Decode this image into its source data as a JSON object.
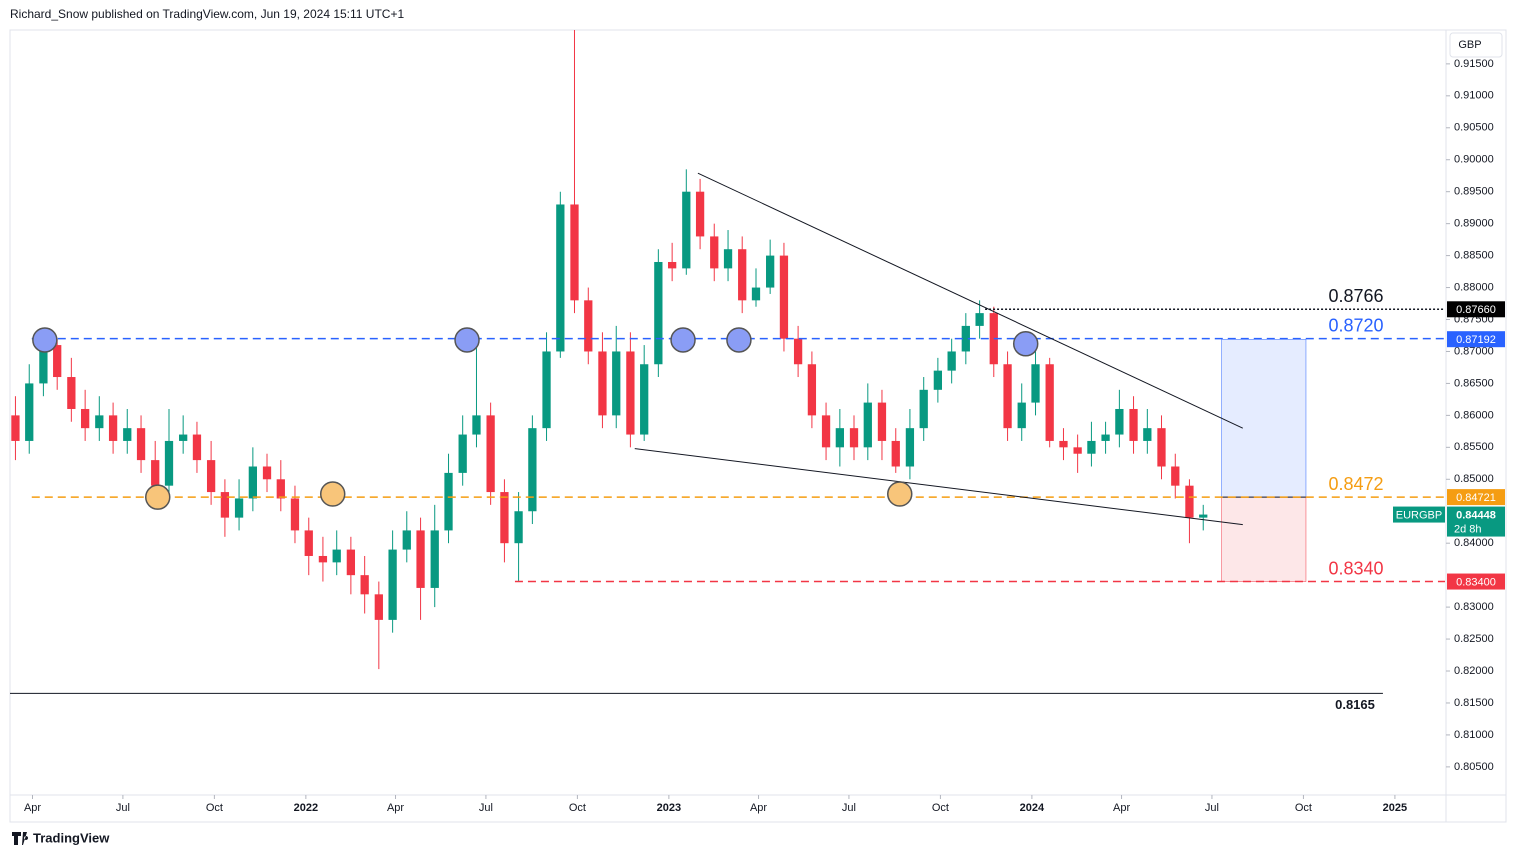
{
  "chart_data": {
    "type": "candlestick",
    "title": "Richard_Snow published on TradingView.com, Jun 19, 2024 15:11 UTC+1",
    "brand": "TradingView",
    "currency": "GBP",
    "symbol": "EURGBP",
    "countdown": "2d 8h",
    "up_color": "#089981",
    "down_color": "#f23645",
    "xlim": [
      2021.185,
      2025.138
    ],
    "ylim": [
      0.8006,
      0.9203
    ],
    "xticks": [
      {
        "value": 2021.247,
        "label": "Apr"
      },
      {
        "value": 2021.496,
        "label": "Jul"
      },
      {
        "value": 2021.748,
        "label": "Oct"
      },
      {
        "value": 2022.0,
        "label": "2022"
      },
      {
        "value": 2022.247,
        "label": "Apr"
      },
      {
        "value": 2022.496,
        "label": "Jul"
      },
      {
        "value": 2022.748,
        "label": "Oct"
      },
      {
        "value": 2023.0,
        "label": "2023"
      },
      {
        "value": 2023.247,
        "label": "Apr"
      },
      {
        "value": 2023.496,
        "label": "Jul"
      },
      {
        "value": 2023.748,
        "label": "Oct"
      },
      {
        "value": 2024.0,
        "label": "2024"
      },
      {
        "value": 2024.247,
        "label": "Apr"
      },
      {
        "value": 2024.496,
        "label": "Jul"
      },
      {
        "value": 2024.748,
        "label": "Oct"
      },
      {
        "value": 2025.0,
        "label": "2025"
      }
    ],
    "yticks": [
      {
        "value": 0.915,
        "label": "0.91500"
      },
      {
        "value": 0.91,
        "label": "0.91000"
      },
      {
        "value": 0.905,
        "label": "0.90500"
      },
      {
        "value": 0.9,
        "label": "0.90000"
      },
      {
        "value": 0.895,
        "label": "0.89500"
      },
      {
        "value": 0.89,
        "label": "0.89000"
      },
      {
        "value": 0.885,
        "label": "0.88500"
      },
      {
        "value": 0.88,
        "label": "0.88000"
      },
      {
        "value": 0.875,
        "label": "0.87500"
      },
      {
        "value": 0.87,
        "label": "0.87000"
      },
      {
        "value": 0.865,
        "label": "0.86500"
      },
      {
        "value": 0.86,
        "label": "0.86000"
      },
      {
        "value": 0.855,
        "label": "0.85500"
      },
      {
        "value": 0.85,
        "label": "0.85000"
      },
      {
        "value": 0.84,
        "label": "0.84000"
      },
      {
        "value": 0.83,
        "label": "0.83000"
      },
      {
        "value": 0.825,
        "label": "0.82500"
      },
      {
        "value": 0.82,
        "label": "0.82000"
      },
      {
        "value": 0.815,
        "label": "0.81500"
      },
      {
        "value": 0.81,
        "label": "0.81000"
      },
      {
        "value": 0.805,
        "label": "0.80500"
      }
    ],
    "x": [
      2021.2,
      2021.238,
      2021.277,
      2021.315,
      2021.354,
      2021.392,
      2021.431,
      2021.469,
      2021.508,
      2021.546,
      2021.585,
      2021.623,
      2021.662,
      2021.7,
      2021.739,
      2021.777,
      2021.816,
      2021.854,
      2021.893,
      2021.931,
      2021.97,
      2022.008,
      2022.047,
      2022.085,
      2022.124,
      2022.162,
      2022.201,
      2022.239,
      2022.278,
      2022.316,
      2022.355,
      2022.393,
      2022.432,
      2022.47,
      2022.509,
      2022.547,
      2022.586,
      2022.624,
      2022.663,
      2022.701,
      2022.74,
      2022.778,
      2022.817,
      2022.855,
      2022.894,
      2022.932,
      2022.971,
      2023.009,
      2023.048,
      2023.086,
      2023.125,
      2023.163,
      2023.202,
      2023.24,
      2023.279,
      2023.317,
      2023.356,
      2023.394,
      2023.433,
      2023.471,
      2023.51,
      2023.548,
      2023.587,
      2023.625,
      2023.664,
      2023.702,
      2023.741,
      2023.779,
      2023.818,
      2023.856,
      2023.895,
      2023.933,
      2023.972,
      2024.01,
      2024.049,
      2024.087,
      2024.126,
      2024.164,
      2024.203,
      2024.241,
      2024.28,
      2024.318,
      2024.357,
      2024.395,
      2024.434,
      2024.472
    ],
    "open": [
      0.86,
      0.856,
      0.865,
      0.871,
      0.866,
      0.861,
      0.858,
      0.86,
      0.856,
      0.858,
      0.853,
      0.849,
      0.856,
      0.857,
      0.853,
      0.848,
      0.844,
      0.847,
      0.852,
      0.85,
      0.847,
      0.842,
      0.838,
      0.837,
      0.839,
      0.835,
      0.832,
      0.828,
      0.839,
      0.842,
      0.833,
      0.842,
      0.851,
      0.857,
      0.86,
      0.848,
      0.84,
      0.845,
      0.858,
      0.87,
      0.893,
      0.878,
      0.87,
      0.86,
      0.87,
      0.857,
      0.868,
      0.884,
      0.883,
      0.895,
      0.888,
      0.883,
      0.886,
      0.878,
      0.88,
      0.885,
      0.872,
      0.868,
      0.86,
      0.855,
      0.858,
      0.855,
      0.862,
      0.856,
      0.852,
      0.858,
      0.864,
      0.867,
      0.87,
      0.874,
      0.876,
      0.868,
      0.858,
      0.862,
      0.868,
      0.856,
      0.855,
      0.854,
      0.856,
      0.857,
      0.861,
      0.856,
      0.858,
      0.852,
      0.849,
      0.844
    ],
    "high": [
      0.863,
      0.868,
      0.873,
      0.872,
      0.869,
      0.864,
      0.863,
      0.862,
      0.861,
      0.86,
      0.856,
      0.861,
      0.86,
      0.859,
      0.856,
      0.85,
      0.85,
      0.855,
      0.854,
      0.853,
      0.849,
      0.844,
      0.841,
      0.842,
      0.841,
      0.838,
      0.834,
      0.842,
      0.845,
      0.844,
      0.846,
      0.854,
      0.86,
      0.872,
      0.862,
      0.85,
      0.848,
      0.86,
      0.873,
      0.895,
      0.9267,
      0.88,
      0.873,
      0.874,
      0.873,
      0.871,
      0.886,
      0.887,
      0.8985,
      0.897,
      0.89,
      0.889,
      0.888,
      0.883,
      0.8875,
      0.887,
      0.874,
      0.87,
      0.862,
      0.861,
      0.86,
      0.865,
      0.864,
      0.858,
      0.861,
      0.866,
      0.869,
      0.872,
      0.876,
      0.878,
      0.877,
      0.87,
      0.865,
      0.87,
      0.869,
      0.858,
      0.857,
      0.859,
      0.859,
      0.864,
      0.863,
      0.861,
      0.86,
      0.854,
      0.85,
      0.846
    ],
    "low": [
      0.853,
      0.854,
      0.863,
      0.864,
      0.859,
      0.856,
      0.856,
      0.854,
      0.854,
      0.851,
      0.847,
      0.847,
      0.854,
      0.851,
      0.846,
      0.841,
      0.842,
      0.845,
      0.848,
      0.845,
      0.84,
      0.835,
      0.834,
      0.835,
      0.832,
      0.829,
      0.8203,
      0.826,
      0.837,
      0.828,
      0.83,
      0.84,
      0.849,
      0.855,
      0.846,
      0.837,
      0.834,
      0.843,
      0.856,
      0.869,
      0.876,
      0.868,
      0.858,
      0.858,
      0.855,
      0.856,
      0.866,
      0.881,
      0.882,
      0.886,
      0.881,
      0.881,
      0.876,
      0.877,
      0.879,
      0.87,
      0.866,
      0.858,
      0.853,
      0.852,
      0.853,
      0.853,
      0.853,
      0.851,
      0.85,
      0.856,
      0.862,
      0.865,
      0.868,
      0.872,
      0.866,
      0.856,
      0.856,
      0.86,
      0.855,
      0.853,
      0.851,
      0.852,
      0.854,
      0.855,
      0.854,
      0.854,
      0.85,
      0.847,
      0.84,
      0.842
    ],
    "close": [
      0.856,
      0.865,
      0.871,
      0.866,
      0.861,
      0.858,
      0.86,
      0.856,
      0.858,
      0.853,
      0.849,
      0.856,
      0.857,
      0.853,
      0.848,
      0.844,
      0.847,
      0.852,
      0.85,
      0.847,
      0.842,
      0.838,
      0.837,
      0.839,
      0.835,
      0.832,
      0.828,
      0.839,
      0.842,
      0.833,
      0.842,
      0.851,
      0.857,
      0.86,
      0.848,
      0.84,
      0.845,
      0.858,
      0.87,
      0.893,
      0.878,
      0.87,
      0.86,
      0.87,
      0.857,
      0.868,
      0.884,
      0.883,
      0.895,
      0.888,
      0.883,
      0.886,
      0.878,
      0.88,
      0.885,
      0.872,
      0.868,
      0.86,
      0.855,
      0.858,
      0.855,
      0.862,
      0.856,
      0.852,
      0.858,
      0.864,
      0.867,
      0.87,
      0.874,
      0.876,
      0.868,
      0.858,
      0.862,
      0.868,
      0.856,
      0.855,
      0.854,
      0.856,
      0.857,
      0.861,
      0.856,
      0.858,
      0.852,
      0.849,
      0.844,
      0.84448
    ],
    "levels": [
      {
        "value": 0.8766,
        "label": "0.8766",
        "color": "#131722",
        "style": "dotted",
        "start": 2023.871
      },
      {
        "value": 0.872,
        "label": "0.8720",
        "color": "#2962ff",
        "style": "dashed",
        "start": 2021.245
      },
      {
        "value": 0.8472,
        "label": "0.8472",
        "color": "#f59d12",
        "style": "dashed",
        "start": 2021.245
      },
      {
        "value": 0.834,
        "label": "0.8340",
        "color": "#f23645",
        "style": "dashed",
        "start": 2022.576
      },
      {
        "value": 0.8165,
        "label": "0.8165",
        "color": "#131722",
        "style": "solid",
        "start": 2021.185,
        "end": 2024.967
      }
    ],
    "price_tags": [
      {
        "value": 0.8766,
        "label": "0.87660",
        "color": "#000000"
      },
      {
        "value": 0.87192,
        "label": "0.87192",
        "color": "#2962ff"
      },
      {
        "value": 0.84721,
        "label": "0.84721",
        "color": "#f59d12"
      },
      {
        "value": 0.834,
        "label": "0.83400",
        "color": "#f23645"
      }
    ],
    "last_price": {
      "value": 0.84448,
      "label": "0.84448",
      "color": "#089981"
    },
    "trendlines": [
      {
        "x": [
          2023.08,
          2024.581
        ],
        "y": [
          0.8979,
          0.858
        ]
      },
      {
        "x": [
          2022.906,
          2024.581
        ],
        "y": [
          0.8548,
          0.8429
        ]
      }
    ],
    "touch_points": [
      {
        "x": 2021.281,
        "y": 0.8718,
        "color": "#8a9df5"
      },
      {
        "x": 2022.444,
        "y": 0.8718,
        "color": "#8a9df5"
      },
      {
        "x": 2023.039,
        "y": 0.8718,
        "color": "#8a9df5"
      },
      {
        "x": 2023.193,
        "y": 0.8718,
        "color": "#8a9df5"
      },
      {
        "x": 2023.983,
        "y": 0.8712,
        "color": "#8a9df5"
      },
      {
        "x": 2021.592,
        "y": 0.8472,
        "color": "#f8c57a"
      },
      {
        "x": 2022.074,
        "y": 0.8477,
        "color": "#f8c57a"
      },
      {
        "x": 2023.636,
        "y": 0.8477,
        "color": "#f8c57a"
      }
    ],
    "position": {
      "x": [
        2024.523,
        2024.755
      ],
      "target": 0.8719,
      "entry": 0.8472,
      "stop": 0.834
    }
  }
}
